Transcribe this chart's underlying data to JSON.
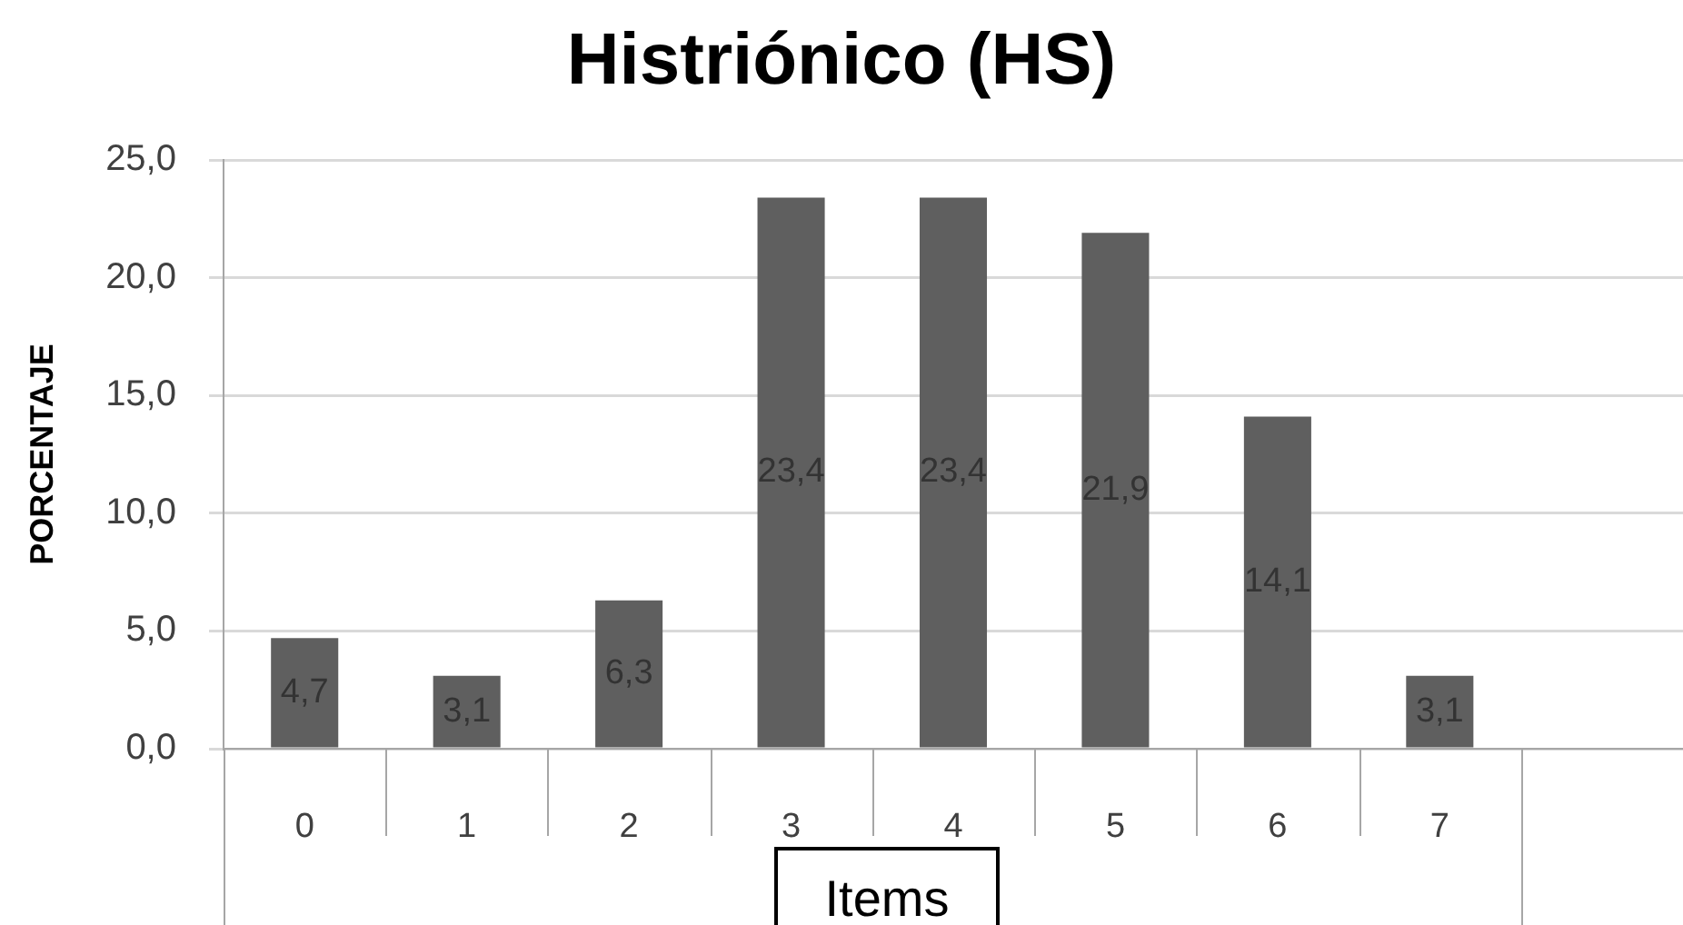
{
  "chart_data": {
    "type": "bar",
    "title": "Histriónico (HS)",
    "xlabel": "Items",
    "ylabel": "PORCENTAJE",
    "categories": [
      "0",
      "1",
      "2",
      "3",
      "4",
      "5",
      "6",
      "7",
      null
    ],
    "values": [
      4.7,
      3.1,
      6.3,
      23.4,
      23.4,
      21.9,
      14.1,
      3.1,
      null
    ],
    "value_labels": [
      "4,7",
      "3,1",
      "6,3",
      "23,4",
      "23,4",
      "21,9",
      "14,1",
      "3,1",
      null
    ],
    "color": "#5f5f5f",
    "ylim": [
      0,
      25
    ],
    "yticks": [
      {
        "value": 0,
        "label": "0,0"
      },
      {
        "value": 5,
        "label": "5,0"
      },
      {
        "value": 10,
        "label": "10,0"
      },
      {
        "value": 15,
        "label": "15,0"
      },
      {
        "value": 20,
        "label": "20,0"
      },
      {
        "value": 25,
        "label": "25,0"
      }
    ],
    "grid": "y"
  }
}
